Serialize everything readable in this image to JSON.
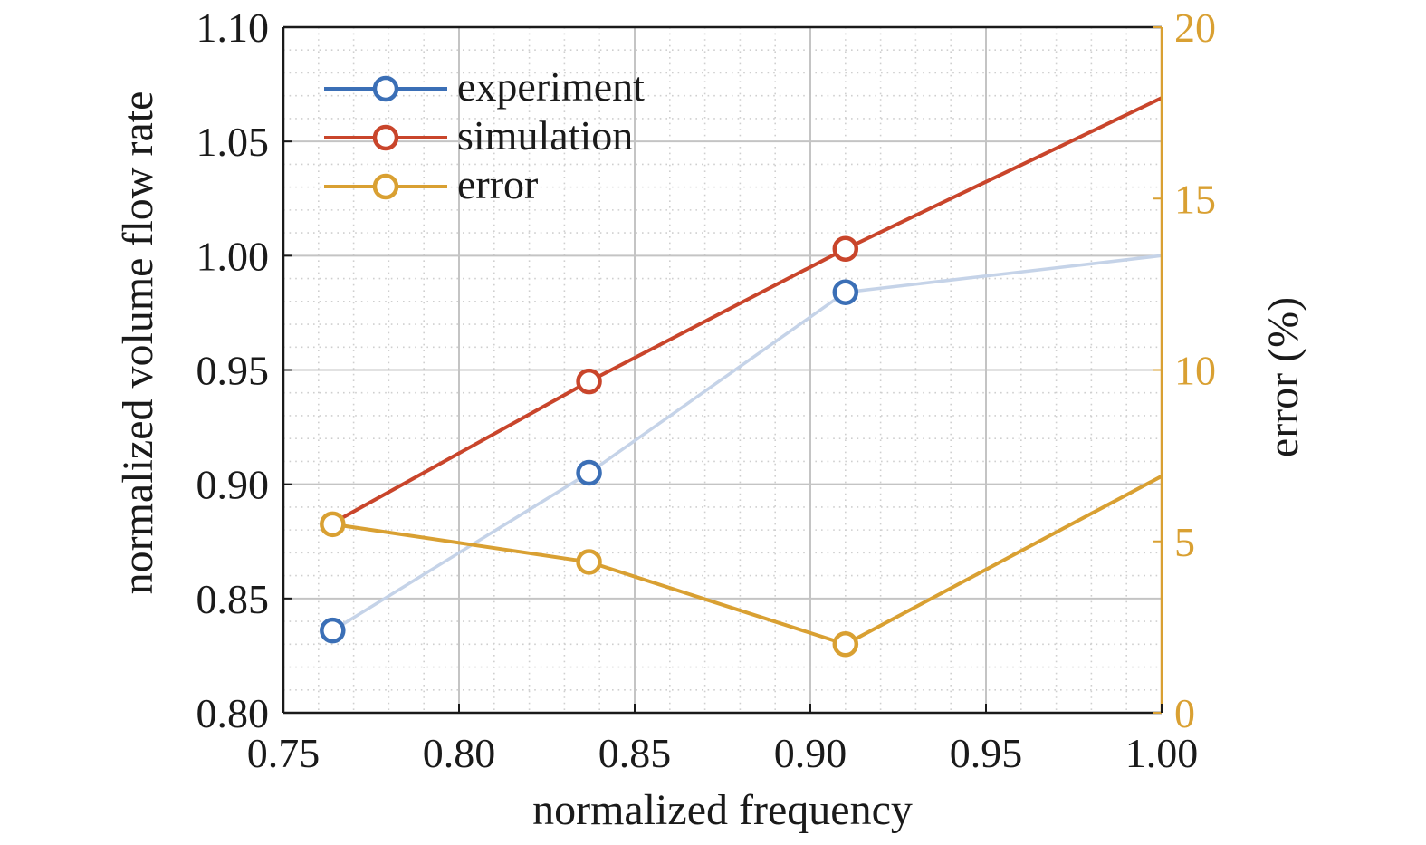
{
  "chart_data": {
    "type": "line",
    "title": "",
    "xlabel": "normalized frequency",
    "ylabel": "normalized volume flow rate",
    "y2label": "error (%)",
    "xlim": [
      0.75,
      1.0
    ],
    "ylim": [
      0.8,
      1.1
    ],
    "y2lim": [
      0,
      20
    ],
    "x_ticks": [
      "0.75",
      "0.80",
      "0.85",
      "0.90",
      "0.95",
      "1.00"
    ],
    "y_ticks": [
      "0.80",
      "0.85",
      "0.90",
      "0.95",
      "1.00",
      "1.05",
      "1.10"
    ],
    "y2_ticks": [
      "0",
      "5",
      "10",
      "15",
      "20"
    ],
    "grid": true,
    "minor_grid": true,
    "legend_position": "top-left",
    "series": [
      {
        "name": "experiment",
        "axis": "left",
        "color": "#3b6fb6",
        "line_color": "#c5d3e8",
        "x": [
          0.764,
          0.837,
          0.91,
          1.0
        ],
        "y": [
          0.836,
          0.905,
          0.984,
          1.0
        ],
        "markers": [
          true,
          true,
          true,
          false
        ]
      },
      {
        "name": "simulation",
        "axis": "left",
        "color": "#c9452b",
        "line_color": "#c9452b",
        "x": [
          0.764,
          0.837,
          0.91,
          1.0
        ],
        "y": [
          0.883,
          0.945,
          1.003,
          1.069
        ],
        "markers": [
          false,
          true,
          true,
          false
        ]
      },
      {
        "name": "error",
        "axis": "right",
        "color": "#d9a032",
        "line_color": "#d9a032",
        "x": [
          0.764,
          0.837,
          0.91,
          1.0
        ],
        "y": [
          5.5,
          4.4,
          2.0,
          6.9
        ],
        "markers": [
          true,
          true,
          true,
          false
        ]
      }
    ],
    "colors": {
      "axis": "#1a1a1a",
      "right_axis": "#d9a032",
      "major_grid": "#c4c4c4",
      "minor_grid": "#cfcfcf"
    }
  }
}
